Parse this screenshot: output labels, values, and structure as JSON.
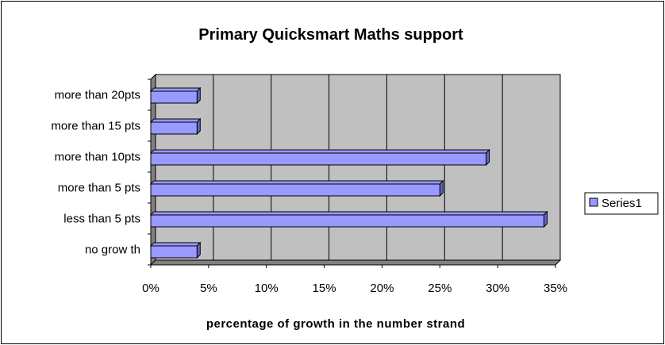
{
  "chart_data": {
    "type": "bar",
    "orientation": "horizontal",
    "style": "3d",
    "title": "Primary Quicksmart Maths support",
    "xlabel": "percentage of growth in the number strand",
    "ylabel": "",
    "categories": [
      "more than 20pts",
      "more than 15 pts",
      "more than 10pts",
      "more than 5 pts",
      "less than 5 pts",
      "no grow th"
    ],
    "series": [
      {
        "name": "Series1",
        "values": [
          4,
          4,
          29,
          25,
          34,
          4
        ],
        "color": "#9999ff"
      }
    ],
    "xlim": [
      0,
      35
    ],
    "x_ticks": [
      "0%",
      "5%",
      "10%",
      "15%",
      "20%",
      "25%",
      "30%",
      "35%"
    ],
    "grid": true,
    "legend_position": "right",
    "plot_background": "#c0c0c0"
  }
}
